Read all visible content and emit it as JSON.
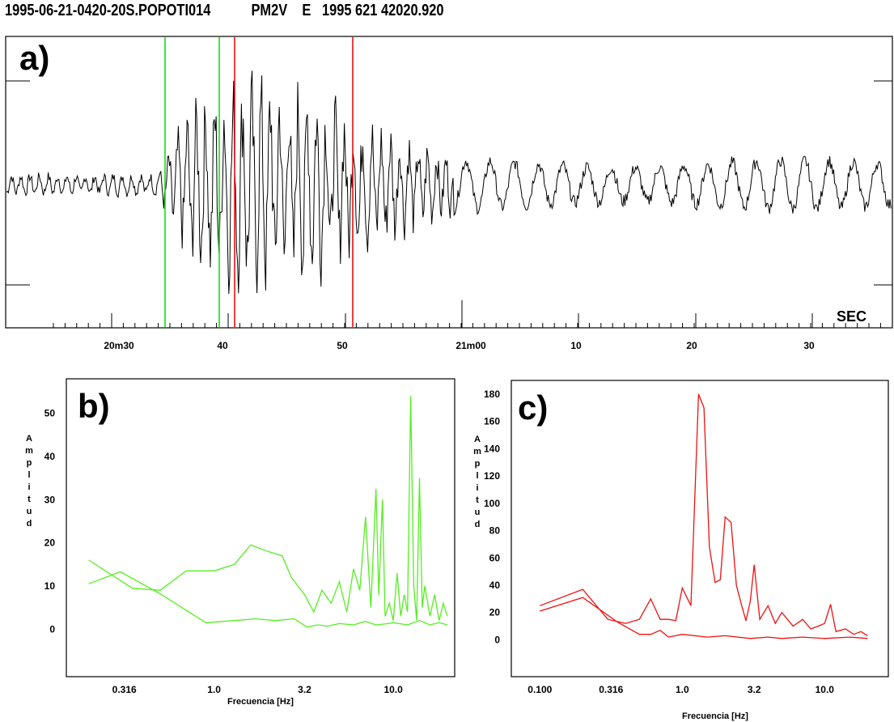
{
  "header": {
    "station": "1995-06-21-0420-20S.POPOTI014",
    "component": "PM2V",
    "flag": "E",
    "datetime": "1995 621 42020.920"
  },
  "chart_data": [
    {
      "type": "line",
      "panel_label": "a)",
      "unit_label": "SEC",
      "x_tick_labels": [
        "20m30",
        "40",
        "50",
        "21m00",
        "10",
        "20",
        "30"
      ],
      "green_markers": [
        "20m34.5s",
        "20m39.2s"
      ],
      "red_markers": [
        "20m40.5s",
        "20m50.9s"
      ],
      "colors": {
        "trace": "#000000",
        "green": "#00dd00",
        "red": "#ee0000"
      }
    },
    {
      "type": "line",
      "panel_label": "b)",
      "xlabel": "Frecuencia  [Hz]",
      "ylabel": "Amplitud",
      "x_scale": "log",
      "xlim": [
        0.15,
        22
      ],
      "ylim": [
        -11,
        58
      ],
      "x_tick_labels": [
        "0.316",
        "1.0",
        "3.2",
        "10.0"
      ],
      "y_tick_labels": [
        "0",
        "10",
        "20",
        "30",
        "40",
        "50"
      ],
      "color": "#55ee22",
      "series": [
        {
          "x": [
            0.2,
            0.3,
            0.5,
            0.9,
            1.3,
            1.7,
            2.2,
            2.8,
            3.3,
            3.8,
            4.3,
            5.0,
            6.0,
            7.0,
            8.0,
            9.0,
            10.0,
            12.0,
            14.0,
            16.0,
            18.0,
            20.0
          ],
          "y": [
            10.5,
            13.3,
            8.2,
            1.5,
            2.0,
            2.4,
            2.0,
            2.4,
            0.5,
            1.0,
            0.7,
            1.3,
            1.0,
            1.8,
            1.0,
            1.2,
            1.5,
            1.0,
            2.0,
            1.0,
            1.5,
            1.0
          ]
        },
        {
          "x": [
            0.2,
            0.35,
            0.5,
            0.7,
            1.0,
            1.3,
            1.6,
            2.0,
            2.4,
            2.7,
            3.2,
            3.6,
            4.0,
            4.5,
            5.0,
            5.5,
            6.0,
            6.5,
            7.0,
            7.5,
            8.0,
            8.3,
            8.7,
            9.0,
            9.5,
            10.0,
            10.5,
            11.0,
            11.5,
            12.0,
            12.5,
            13.0,
            13.5,
            14.0,
            14.5,
            15.0,
            16.0,
            17.0,
            18.0,
            19.0,
            20.0
          ],
          "y": [
            16.0,
            9.5,
            9.0,
            13.5,
            13.5,
            15.0,
            19.5,
            18.0,
            17.0,
            12.0,
            8.0,
            4.0,
            9.0,
            6.0,
            11.0,
            4.0,
            14.0,
            9.0,
            26.0,
            5.0,
            32.5,
            8.0,
            30.0,
            3.0,
            6.0,
            2.0,
            13.0,
            3.0,
            8.0,
            4.0,
            54.0,
            10.0,
            2.0,
            35.0,
            5.0,
            10.0,
            3.0,
            8.0,
            2.0,
            6.0,
            3.0
          ]
        }
      ]
    },
    {
      "type": "line",
      "panel_label": "c)",
      "xlabel": "Frecuencia  [Hz]",
      "ylabel": "Amplitud",
      "x_scale": "log",
      "xlim": [
        0.063,
        28
      ],
      "ylim": [
        -27,
        190
      ],
      "x_tick_labels": [
        "0.100",
        "0.316",
        "1.0",
        "3.2",
        "10.0"
      ],
      "y_tick_labels": [
        "0",
        "20",
        "40",
        "60",
        "80",
        "100",
        "120",
        "140",
        "160",
        "180"
      ],
      "color": "#ee1111",
      "series": [
        {
          "x": [
            0.1,
            0.2,
            0.35,
            0.5,
            0.6,
            0.7,
            0.8,
            1.0,
            1.5,
            2.0,
            3.0,
            4.0,
            5.0,
            7.0,
            10.0,
            15.0,
            20.0
          ],
          "y": [
            21,
            31,
            13,
            4,
            4,
            7,
            2,
            4,
            2,
            3,
            1,
            2,
            1,
            2,
            1,
            2,
            1
          ]
        },
        {
          "x": [
            0.1,
            0.2,
            0.3,
            0.4,
            0.5,
            0.6,
            0.7,
            0.8,
            0.9,
            1.0,
            1.15,
            1.3,
            1.42,
            1.55,
            1.7,
            1.85,
            2.0,
            2.2,
            2.4,
            2.6,
            2.8,
            3.0,
            3.2,
            3.5,
            4.0,
            4.5,
            5.0,
            6.0,
            7.0,
            8.0,
            9.0,
            10.0,
            11.0,
            12.0,
            14.0,
            16.0,
            18.0,
            20.0
          ],
          "y": [
            25,
            37,
            15,
            12,
            15,
            30,
            15,
            15,
            14,
            38,
            25,
            180,
            170,
            68,
            42,
            44,
            90,
            86,
            40,
            26,
            14,
            28,
            55,
            15,
            25,
            12,
            20,
            10,
            15,
            8,
            10,
            12,
            26,
            6,
            8,
            4,
            6,
            3
          ]
        }
      ]
    }
  ]
}
